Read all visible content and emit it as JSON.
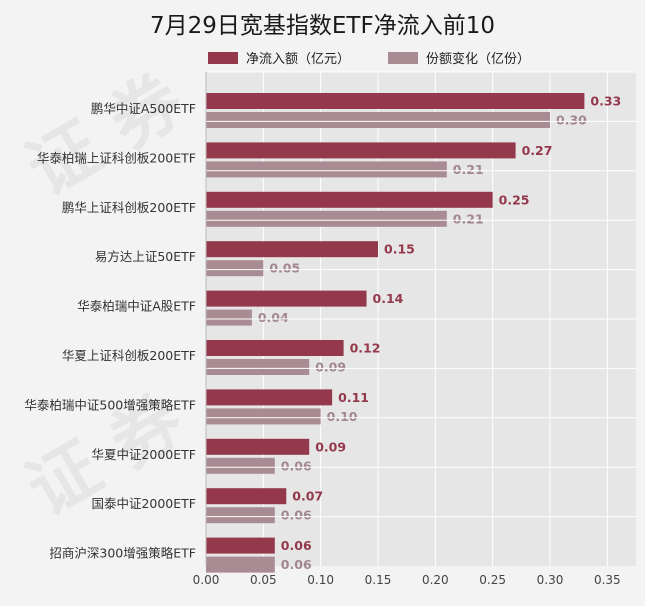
{
  "title": "7月29日宽基指数ETF净流入前10",
  "legend": {
    "inflow": "净流入额（亿元）",
    "share": "份额变化（亿份）"
  },
  "colors": {
    "inflow": "#94394b",
    "share": "#a88b93",
    "plot_bg": "#e6e6e6",
    "grid": "#ffffff",
    "inflow_label": "#94394b",
    "share_label": "#a1868d"
  },
  "chart_data": {
    "type": "bar",
    "orientation": "horizontal",
    "title": "7月29日宽基指数ETF净流入前10",
    "xlabel": "",
    "ylabel": "",
    "xlim": [
      0,
      0.375
    ],
    "xticks": [
      "0.00",
      "0.05",
      "0.10",
      "0.15",
      "0.20",
      "0.25",
      "0.30",
      "0.35"
    ],
    "grid": true,
    "legend_position": "top",
    "categories": [
      "鹏华中证A500ETF",
      "华泰柏瑞上证科创板200ETF",
      "鹏华上证科创板200ETF",
      "易方达上证50ETF",
      "华泰柏瑞中证A股ETF",
      "华夏上证科创板200ETF",
      "华泰柏瑞中证500增强策略ETF",
      "华夏中证2000ETF",
      "国泰中证2000ETF",
      "招商沪深300增强策略ETF"
    ],
    "series": [
      {
        "name": "净流入额（亿元）",
        "values": [
          0.33,
          0.27,
          0.25,
          0.15,
          0.14,
          0.12,
          0.11,
          0.09,
          0.07,
          0.06
        ],
        "labels": [
          "0.33",
          "0.27",
          "0.25",
          "0.15",
          "0.14",
          "0.12",
          "0.11",
          "0.09",
          "0.07",
          "0.06"
        ]
      },
      {
        "name": "份额变化（亿份）",
        "values": [
          0.3,
          0.21,
          0.21,
          0.05,
          0.04,
          0.09,
          0.1,
          0.06,
          0.06,
          0.06
        ],
        "labels": [
          "0.30",
          "0.21",
          "0.21",
          "0.05",
          "0.04",
          "0.09",
          "0.10",
          "0.06",
          "0.06",
          "0.06"
        ]
      }
    ]
  }
}
